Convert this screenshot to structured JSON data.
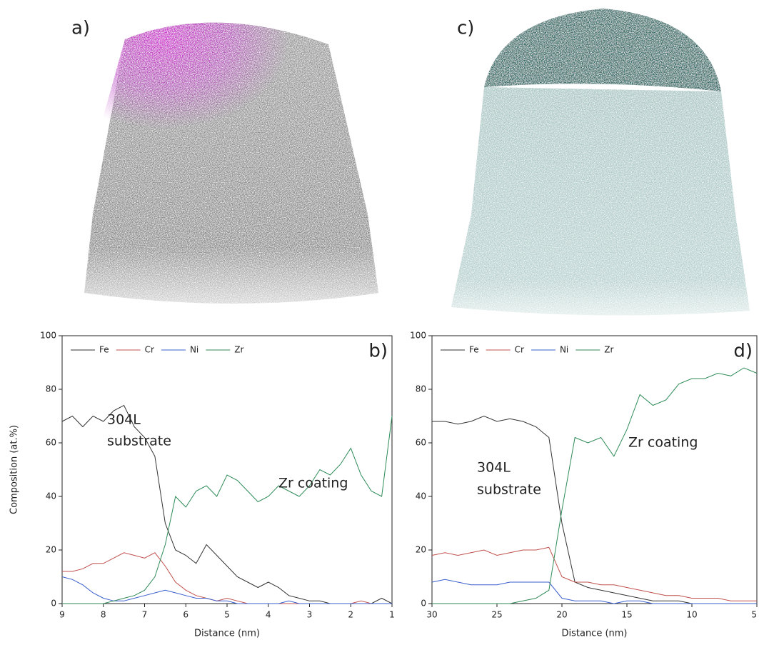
{
  "images": [
    {
      "label": "a)"
    },
    {
      "label": "c)"
    }
  ],
  "chart_data": [
    {
      "type": "line",
      "panel": "b)",
      "ylabel": "Composition (at.%)",
      "xlabel": "Distance (nm)",
      "annotations": [
        "304L",
        "substrate",
        "Zr coating"
      ],
      "xlim": [
        9,
        1
      ],
      "xticks": [
        9,
        8,
        7,
        6,
        5,
        4,
        3,
        2,
        1
      ],
      "ylim": [
        0,
        100
      ],
      "yticks": [
        0,
        20,
        40,
        60,
        80,
        100
      ],
      "x": [
        9,
        8.75,
        8.5,
        8.25,
        8,
        7.75,
        7.5,
        7.25,
        7,
        6.75,
        6.5,
        6.25,
        6,
        5.75,
        5.5,
        5.25,
        5,
        4.75,
        4.5,
        4.25,
        4,
        3.75,
        3.5,
        3.25,
        3,
        2.75,
        2.5,
        2.25,
        2,
        1.75,
        1.5,
        1.25,
        1
      ],
      "series": [
        {
          "name": "Fe",
          "color": "#333333",
          "values": [
            68,
            70,
            66,
            70,
            68,
            72,
            74,
            66,
            62,
            55,
            30,
            20,
            18,
            15,
            22,
            18,
            14,
            10,
            8,
            6,
            8,
            6,
            3,
            2,
            1,
            1,
            0,
            0,
            0,
            0,
            0,
            2,
            0
          ]
        },
        {
          "name": "Cr",
          "color": "#c0504d",
          "values": [
            12,
            12,
            13,
            15,
            15,
            17,
            19,
            18,
            17,
            19,
            14,
            8,
            5,
            3,
            2,
            1,
            2,
            1,
            0,
            0,
            0,
            0,
            0,
            0,
            0,
            0,
            0,
            0,
            0,
            1,
            0,
            0,
            0
          ]
        },
        {
          "name": "Ni",
          "color": "#3a5fcd",
          "values": [
            10,
            9,
            7,
            4,
            2,
            1,
            1,
            2,
            3,
            4,
            5,
            4,
            3,
            2,
            2,
            1,
            1,
            0,
            0,
            0,
            0,
            0,
            1,
            0,
            0,
            0,
            0,
            0,
            0,
            0,
            0,
            0,
            0
          ]
        },
        {
          "name": "Zr",
          "color": "#2e8b57",
          "values": [
            0,
            0,
            0,
            0,
            0,
            1,
            2,
            3,
            5,
            10,
            22,
            40,
            36,
            42,
            44,
            40,
            48,
            46,
            42,
            38,
            40,
            44,
            42,
            40,
            44,
            50,
            48,
            52,
            58,
            48,
            42,
            40,
            70
          ]
        }
      ]
    },
    {
      "type": "line",
      "panel": "d)",
      "xlabel": "Distance (nm)",
      "annotations": [
        "304L",
        "substrate",
        "Zr coating"
      ],
      "xlim": [
        30,
        5
      ],
      "xticks": [
        30,
        25,
        20,
        15,
        10,
        5
      ],
      "ylim": [
        0,
        100
      ],
      "yticks": [
        0,
        20,
        40,
        60,
        80,
        100
      ],
      "x": [
        30,
        29,
        28,
        27,
        26,
        25,
        24,
        23,
        22,
        21,
        20,
        19,
        18,
        17,
        16,
        15,
        14,
        13,
        12,
        11,
        10,
        9,
        8,
        7,
        6,
        5
      ],
      "series": [
        {
          "name": "Fe",
          "color": "#333333",
          "values": [
            68,
            68,
            67,
            68,
            70,
            68,
            69,
            68,
            66,
            62,
            30,
            8,
            6,
            5,
            4,
            3,
            2,
            1,
            1,
            1,
            0,
            0,
            0,
            0,
            0,
            0
          ]
        },
        {
          "name": "Cr",
          "color": "#c0504d",
          "values": [
            18,
            19,
            18,
            19,
            20,
            18,
            19,
            20,
            20,
            21,
            10,
            8,
            8,
            7,
            7,
            6,
            5,
            4,
            3,
            3,
            2,
            2,
            2,
            1,
            1,
            1
          ]
        },
        {
          "name": "Ni",
          "color": "#3a5fcd",
          "values": [
            8,
            9,
            8,
            7,
            7,
            7,
            8,
            8,
            8,
            8,
            2,
            1,
            1,
            1,
            0,
            1,
            1,
            0,
            0,
            0,
            0,
            0,
            0,
            0,
            0,
            0
          ]
        },
        {
          "name": "Zr",
          "color": "#2e8b57",
          "values": [
            0,
            0,
            0,
            0,
            0,
            0,
            0,
            1,
            2,
            5,
            35,
            62,
            60,
            62,
            55,
            65,
            78,
            74,
            76,
            82,
            84,
            84,
            86,
            85,
            88,
            86
          ]
        }
      ]
    }
  ]
}
